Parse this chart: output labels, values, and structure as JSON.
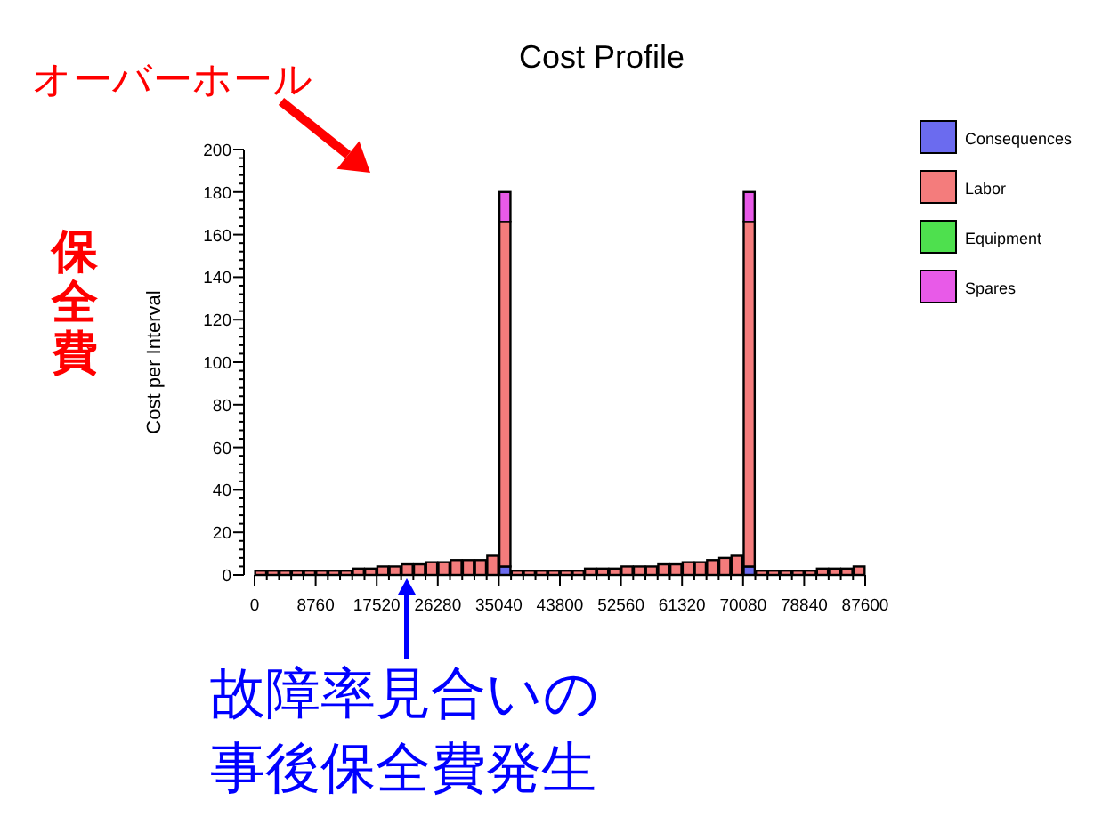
{
  "chart_data": {
    "type": "bar",
    "stacked": true,
    "title": "Cost Profile",
    "ylabel": "Cost per Interval",
    "annotations": [
      "オーバーホール",
      "保全費",
      "故障率見合いの",
      "事後保全費発生"
    ],
    "x": [
      876,
      2628,
      4380,
      6132,
      7884,
      9636,
      11388,
      13140,
      14892,
      16644,
      18396,
      20148,
      21900,
      23652,
      25404,
      27156,
      28908,
      30660,
      32412,
      34164,
      35916,
      37668,
      39420,
      41172,
      42924,
      44676,
      46428,
      48180,
      49932,
      51684,
      53436,
      55188,
      56940,
      58692,
      60444,
      62196,
      63948,
      65700,
      67452,
      69204,
      70956,
      72708,
      74460,
      76212,
      77964,
      79716,
      81468,
      83220,
      84972,
      86724
    ],
    "xlim": [
      0,
      87600
    ],
    "xticks": [
      0,
      8760,
      17520,
      26280,
      35040,
      43800,
      52560,
      61320,
      70080,
      78840,
      87600
    ],
    "ylim": [
      0,
      200
    ],
    "yticks": [
      0,
      20,
      40,
      60,
      80,
      100,
      120,
      140,
      160,
      180,
      200
    ],
    "legend": "right",
    "series": [
      {
        "name": "Consequences",
        "color": "#6b6bef",
        "values": [
          0,
          0,
          0,
          0,
          0,
          0,
          0,
          0,
          0,
          0,
          0,
          0,
          0,
          0,
          0,
          0,
          0,
          0,
          0,
          0,
          4,
          0,
          0,
          0,
          0,
          0,
          0,
          0,
          0,
          0,
          0,
          0,
          0,
          0,
          0,
          0,
          0,
          0,
          0,
          0,
          4,
          0,
          0,
          0,
          0,
          0,
          0,
          0,
          0,
          0
        ]
      },
      {
        "name": "Labor",
        "color": "#f47c7c",
        "values": [
          2,
          2,
          2,
          2,
          2,
          2,
          2,
          2,
          3,
          3,
          4,
          4,
          5,
          5,
          6,
          6,
          7,
          7,
          7,
          9,
          162,
          2,
          2,
          2,
          2,
          2,
          2,
          3,
          3,
          3,
          4,
          4,
          4,
          5,
          5,
          6,
          6,
          7,
          8,
          9,
          162,
          2,
          2,
          2,
          2,
          2,
          3,
          3,
          3,
          4
        ]
      },
      {
        "name": "Equipment",
        "color": "#4ee04e",
        "values": [
          0,
          0,
          0,
          0,
          0,
          0,
          0,
          0,
          0,
          0,
          0,
          0,
          0,
          0,
          0,
          0,
          0,
          0,
          0,
          0,
          0,
          0,
          0,
          0,
          0,
          0,
          0,
          0,
          0,
          0,
          0,
          0,
          0,
          0,
          0,
          0,
          0,
          0,
          0,
          0,
          0,
          0,
          0,
          0,
          0,
          0,
          0,
          0,
          0,
          0
        ]
      },
      {
        "name": "Spares",
        "color": "#e85ae8",
        "values": [
          0,
          0,
          0,
          0,
          0,
          0,
          0,
          0,
          0,
          0,
          0,
          0,
          0,
          0,
          0,
          0,
          0,
          0,
          0,
          0,
          14,
          0,
          0,
          0,
          0,
          0,
          0,
          0,
          0,
          0,
          0,
          0,
          0,
          0,
          0,
          0,
          0,
          0,
          0,
          0,
          14,
          0,
          0,
          0,
          0,
          0,
          0,
          0,
          0,
          0
        ]
      }
    ]
  }
}
